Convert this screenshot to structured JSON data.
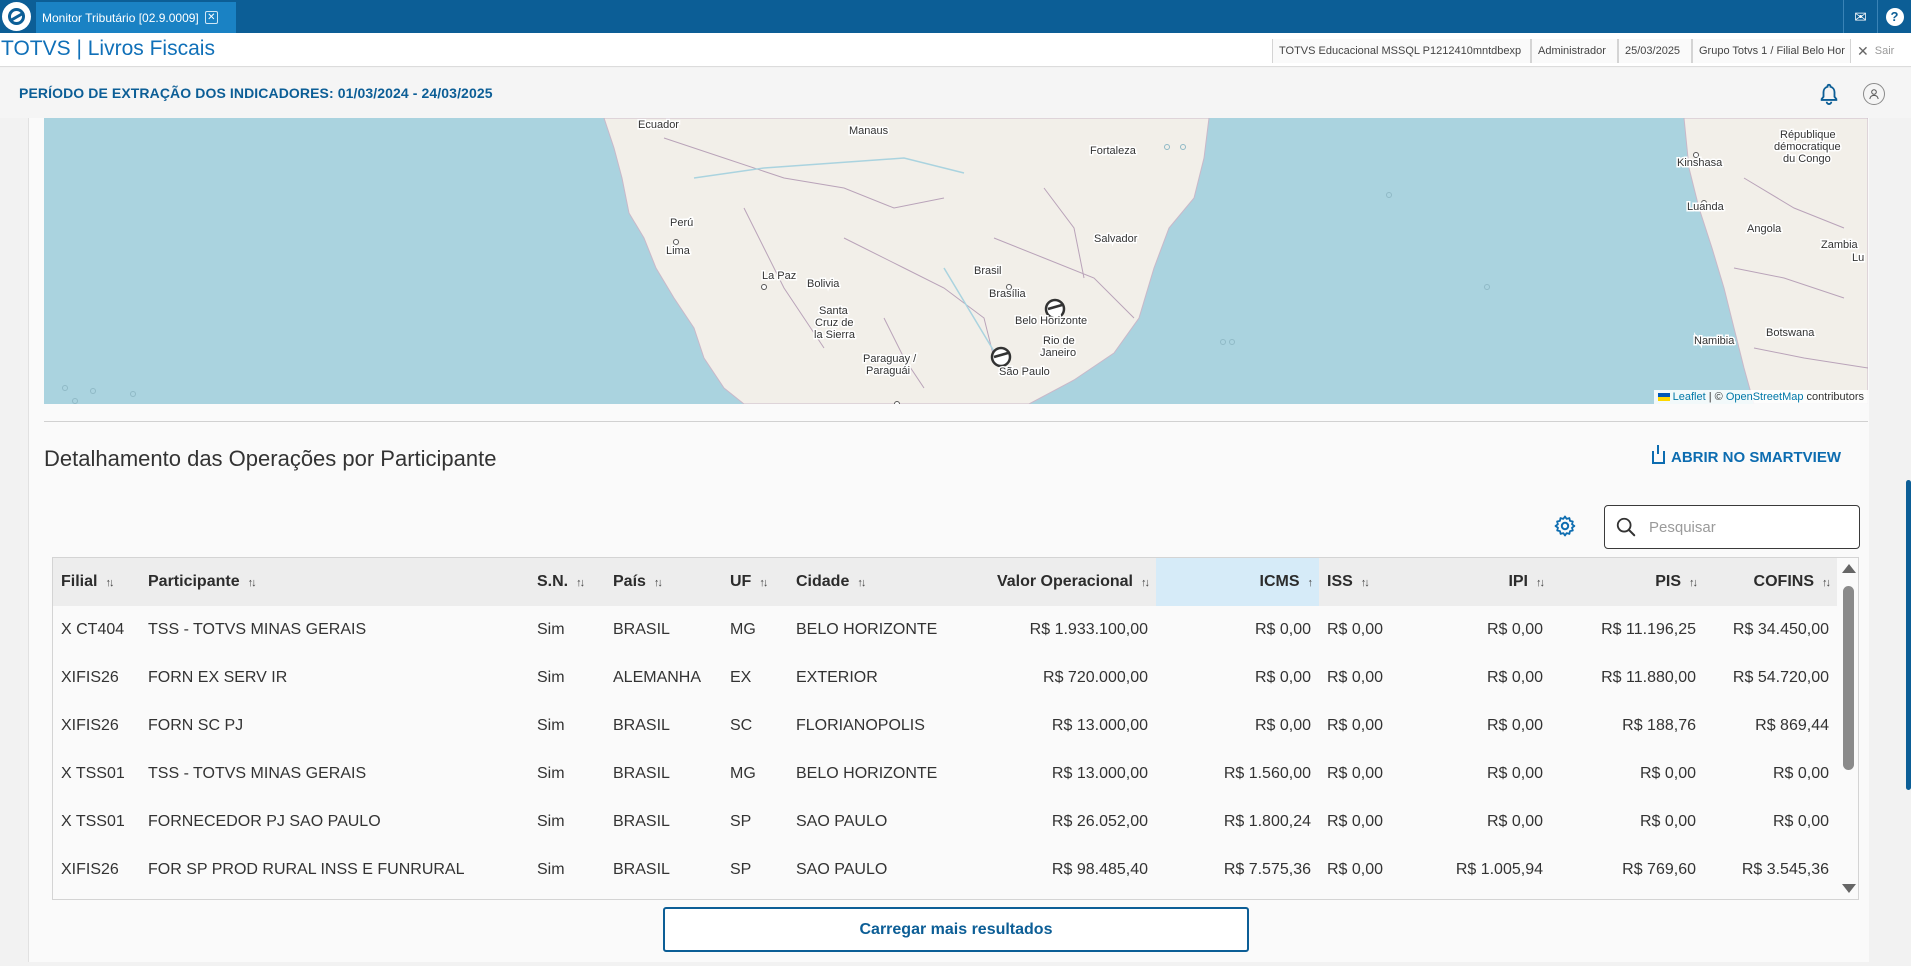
{
  "topbar": {
    "tab_title": "Monitor Tributário [02.9.0009]",
    "tab_close": "✕",
    "mail_icon": "✉",
    "help_icon": "?"
  },
  "appbar": {
    "title": "TOTVS | Livros Fiscais",
    "environment": "TOTVS Educacional MSSQL P1212410mntdbexp",
    "user": "Administrador",
    "date": "25/03/2025",
    "branch": "Grupo Totvs 1 / Filial Belo Hor",
    "exit_label": "Sair"
  },
  "period": {
    "text": "PERÍODO DE EXTRAÇÃO DOS INDICADORES: 01/03/2024 - 24/03/2025"
  },
  "map": {
    "labels": {
      "ecuador": "Ecuador",
      "manaus": "Manaus",
      "fortaleza": "Fortaleza",
      "peru": "Perú",
      "lima": "Lima",
      "lapaz": "La Paz",
      "bolivia": "Bolivia",
      "santacruz1": "Santa",
      "santacruz2": "Cruz de",
      "santacruz3": "la Sierra",
      "brasil": "Brasil",
      "brasilia": "Brasília",
      "salvador": "Salvador",
      "belohorizonte": "Belo Horizonte",
      "rio1": "Rio de",
      "rio2": "Janeiro",
      "saopaulo": "São Paulo",
      "paraguay1": "Paraguay /",
      "paraguay2": "Paraguái",
      "kinshasa": "Kinshasa",
      "rdc1": "République",
      "rdc2": "démocratique",
      "rdc3": "du Congo",
      "luanda": "Luanda",
      "angola": "Angola",
      "zambia": "Zambia",
      "namibia": "Namibia",
      "botswana": "Botswana",
      "lu": "Lu"
    },
    "attribution": {
      "leaflet": "Leaflet",
      "sep": " | © ",
      "osm": "OpenStreetMap",
      "contrib": " contributors"
    }
  },
  "section": {
    "title": "Detalhamento das Operações por Participante",
    "smartview_label": "ABRIR NO SMARTVIEW",
    "search_placeholder": "Pesquisar"
  },
  "table": {
    "columns": [
      {
        "label": "Filial",
        "align": "left"
      },
      {
        "label": "Participante",
        "align": "left"
      },
      {
        "label": "S.N.",
        "align": "left"
      },
      {
        "label": "País",
        "align": "left"
      },
      {
        "label": "UF",
        "align": "left"
      },
      {
        "label": "Cidade",
        "align": "left"
      },
      {
        "label": "Valor Operacional",
        "align": "right"
      },
      {
        "label": "ICMS",
        "align": "right",
        "sorted": true
      },
      {
        "label": "ISS",
        "align": "left"
      },
      {
        "label": "IPI",
        "align": "right"
      },
      {
        "label": "PIS",
        "align": "right"
      },
      {
        "label": "COFINS",
        "align": "right"
      }
    ],
    "rows": [
      [
        "X CT404",
        "TSS - TOTVS MINAS GERAIS",
        "Sim",
        "BRASIL",
        "MG",
        "BELO HORIZONTE",
        "R$ 1.933.100,00",
        "R$ 0,00",
        "R$ 0,00",
        "R$ 0,00",
        "R$ 11.196,25",
        "R$ 34.450,00"
      ],
      [
        "XIFIS26",
        "FORN EX SERV IR",
        "Sim",
        "ALEMANHA",
        "EX",
        "EXTERIOR",
        "R$ 720.000,00",
        "R$ 0,00",
        "R$ 0,00",
        "R$ 0,00",
        "R$ 11.880,00",
        "R$ 54.720,00"
      ],
      [
        "XIFIS26",
        "FORN SC PJ",
        "Sim",
        "BRASIL",
        "SC",
        "FLORIANOPOLIS",
        "R$ 13.000,00",
        "R$ 0,00",
        "R$ 0,00",
        "R$ 0,00",
        "R$ 188,76",
        "R$ 869,44"
      ],
      [
        "X TSS01",
        "TSS - TOTVS MINAS GERAIS",
        "Sim",
        "BRASIL",
        "MG",
        "BELO HORIZONTE",
        "R$ 13.000,00",
        "R$ 1.560,00",
        "R$ 0,00",
        "R$ 0,00",
        "R$ 0,00",
        "R$ 0,00"
      ],
      [
        "X TSS01",
        "FORNECEDOR PJ SAO PAULO",
        "Sim",
        "BRASIL",
        "SP",
        "SAO PAULO",
        "R$ 26.052,00",
        "R$ 1.800,24",
        "R$ 0,00",
        "R$ 0,00",
        "R$ 0,00",
        "R$ 0,00"
      ],
      [
        "XIFIS26",
        "FOR SP PROD RURAL INSS E FUNRURAL",
        "Sim",
        "BRASIL",
        "SP",
        "SAO PAULO",
        "R$ 98.485,40",
        "R$ 7.575,36",
        "R$ 0,00",
        "R$ 1.005,94",
        "R$ 769,60",
        "R$ 3.545,36"
      ]
    ]
  },
  "load_more_label": "Carregar mais resultados",
  "colors": {
    "brand": "#0c5e96",
    "accent": "#1070b8",
    "water": "#aad3df",
    "land": "#f2efe9"
  }
}
